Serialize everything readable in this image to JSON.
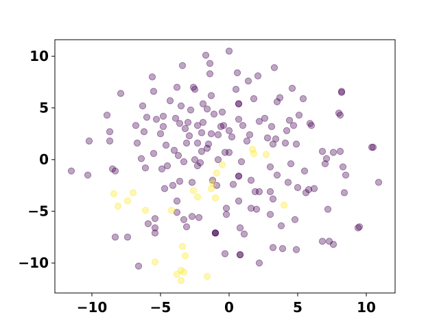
{
  "chart_data": {
    "type": "scatter",
    "title": "",
    "xlabel": "",
    "ylabel": "",
    "xlim": [
      -12.7,
      12.1
    ],
    "ylim": [
      -12.9,
      11.6
    ],
    "xticks": [
      -10,
      -5,
      0,
      5,
      10
    ],
    "yticks": [
      -10,
      -5,
      0,
      5,
      10
    ],
    "grid": false,
    "legend": "none",
    "alpha": 0.35,
    "series": [
      {
        "color": "#440154",
        "points": [
          [
            -11.5,
            -1.1
          ],
          [
            -10.2,
            1.8
          ],
          [
            -10.3,
            -1.5
          ],
          [
            -8.9,
            4.3
          ],
          [
            -8.7,
            2.7
          ],
          [
            -8.7,
            1.8
          ],
          [
            -8.5,
            -0.9
          ],
          [
            -8.3,
            -1.1
          ],
          [
            -8.3,
            -7.5
          ],
          [
            -7.9,
            6.4
          ],
          [
            -7.4,
            -7.5
          ],
          [
            -6.8,
            3.3
          ],
          [
            -6.7,
            1.6
          ],
          [
            -6.6,
            -10.3
          ],
          [
            -6.4,
            0.1
          ],
          [
            -6.3,
            5.2
          ],
          [
            -6.2,
            2.7
          ],
          [
            -6.1,
            -0.8
          ],
          [
            -6.0,
            4.1
          ],
          [
            -5.9,
            -6.2
          ],
          [
            -5.6,
            8.0
          ],
          [
            -5.5,
            6.6
          ],
          [
            -5.5,
            0.6
          ],
          [
            -5.4,
            -5.7
          ],
          [
            -5.4,
            -6.6
          ],
          [
            -5.4,
            -7.1
          ],
          [
            -5.3,
            3.9
          ],
          [
            -5.0,
            2.5
          ],
          [
            -4.9,
            -0.9
          ],
          [
            -4.8,
            4.2
          ],
          [
            -4.8,
            3.2
          ],
          [
            -4.7,
            -2.8
          ],
          [
            -4.6,
            1.4
          ],
          [
            -4.5,
            -0.6
          ],
          [
            -4.3,
            5.7
          ],
          [
            -4.1,
            -2.5
          ],
          [
            -4.0,
            0.9
          ],
          [
            -3.9,
            4.0
          ],
          [
            -3.8,
            -4.0
          ],
          [
            -3.8,
            7.0
          ],
          [
            -3.8,
            -5.1
          ],
          [
            -3.7,
            0.4
          ],
          [
            -3.6,
            -2.1
          ],
          [
            -3.6,
            3.5
          ],
          [
            -3.5,
            5.2
          ],
          [
            -3.4,
            9.1
          ],
          [
            -3.3,
            -0.2
          ],
          [
            -3.3,
            -5.8
          ],
          [
            -3.2,
            3.0
          ],
          [
            -3.1,
            1.6
          ],
          [
            -3.1,
            -6.5
          ],
          [
            -3.0,
            3.6
          ],
          [
            -2.9,
            2.3
          ],
          [
            -2.8,
            4.8
          ],
          [
            -2.7,
            -2.2
          ],
          [
            -2.7,
            -5.5
          ],
          [
            -2.6,
            7.0
          ],
          [
            -2.5,
            6.8
          ],
          [
            -2.5,
            0.0
          ],
          [
            -2.3,
            3.3
          ],
          [
            -2.3,
            -0.6
          ],
          [
            -2.3,
            1.6
          ],
          [
            -2.2,
            -5.6
          ],
          [
            -2.1,
            -0.3
          ],
          [
            -2.0,
            2.6
          ],
          [
            -2.0,
            0.8
          ],
          [
            -1.9,
            3.6
          ],
          [
            -1.9,
            5.4
          ],
          [
            -1.7,
            10.1
          ],
          [
            -1.6,
            4.9
          ],
          [
            -1.6,
            1.1
          ],
          [
            -1.5,
            1.5
          ],
          [
            -1.4,
            8.3
          ],
          [
            -1.4,
            9.3
          ],
          [
            -1.3,
            2.5
          ],
          [
            -1.3,
            6.2
          ],
          [
            -1.2,
            -2.0
          ],
          [
            -1.1,
            4.4
          ],
          [
            -1.0,
            -7.1
          ],
          [
            -1.0,
            -7.1
          ],
          [
            -1.0,
            -7.1
          ],
          [
            -0.9,
            -2.5
          ],
          [
            -0.8,
            0.0
          ],
          [
            -0.8,
            2.4
          ],
          [
            -0.6,
            3.2
          ],
          [
            -0.5,
            4.6
          ],
          [
            -0.4,
            3.3
          ],
          [
            -0.3,
            0.7
          ],
          [
            -0.3,
            -9.1
          ],
          [
            -0.2,
            -4.7
          ],
          [
            -0.2,
            -5.3
          ],
          [
            0.0,
            10.5
          ],
          [
            0.0,
            2.8
          ],
          [
            0.0,
            0.7
          ],
          [
            0.2,
            2.2
          ],
          [
            0.3,
            -2.4
          ],
          [
            0.5,
            6.8
          ],
          [
            0.6,
            8.4
          ],
          [
            0.7,
            5.4
          ],
          [
            0.7,
            5.4
          ],
          [
            0.7,
            3.9
          ],
          [
            0.7,
            -1.6
          ],
          [
            0.7,
            -1.6
          ],
          [
            0.7,
            -4.0
          ],
          [
            0.8,
            -6.6
          ],
          [
            0.8,
            -9.2
          ],
          [
            0.8,
            -9.2
          ],
          [
            0.9,
            -0.2
          ],
          [
            1.0,
            3.3
          ],
          [
            1.1,
            -7.2
          ],
          [
            1.3,
            1.8
          ],
          [
            1.4,
            7.6
          ],
          [
            1.5,
            2.4
          ],
          [
            1.6,
            -2.0
          ],
          [
            1.6,
            -4.7
          ],
          [
            1.8,
            5.9
          ],
          [
            1.9,
            -3.1
          ],
          [
            2.0,
            -4.8
          ],
          [
            2.1,
            8.1
          ],
          [
            2.2,
            -3.1
          ],
          [
            2.2,
            3.7
          ],
          [
            2.2,
            -10.0
          ],
          [
            2.6,
            4.0
          ],
          [
            2.8,
            2.1
          ],
          [
            3.0,
            -0.7
          ],
          [
            3.0,
            -5.3
          ],
          [
            3.0,
            -3.1
          ],
          [
            3.1,
            3.2
          ],
          [
            3.2,
            1.5
          ],
          [
            3.2,
            -3.8
          ],
          [
            3.2,
            -8.5
          ],
          [
            3.3,
            8.9
          ],
          [
            3.4,
            2.0
          ],
          [
            3.5,
            -1.5
          ],
          [
            3.5,
            5.6
          ],
          [
            3.7,
            6.0
          ],
          [
            3.8,
            -6.4
          ],
          [
            3.9,
            -8.6
          ],
          [
            4.1,
            1.6
          ],
          [
            4.2,
            2.8
          ],
          [
            4.3,
            -2.2
          ],
          [
            4.4,
            3.8
          ],
          [
            4.5,
            -0.4
          ],
          [
            4.6,
            6.9
          ],
          [
            4.7,
            3.3
          ],
          [
            4.8,
            -5.8
          ],
          [
            4.9,
            1.5
          ],
          [
            4.9,
            -8.7
          ],
          [
            5.0,
            -2.7
          ],
          [
            5.1,
            4.3
          ],
          [
            5.4,
            5.9
          ],
          [
            5.5,
            -1.1
          ],
          [
            5.6,
            -3.2
          ],
          [
            5.8,
            -2.9
          ],
          [
            5.9,
            3.5
          ],
          [
            6.0,
            3.3
          ],
          [
            6.2,
            -2.8
          ],
          [
            6.8,
            0.8
          ],
          [
            6.8,
            -7.9
          ],
          [
            7.0,
            -0.4
          ],
          [
            7.1,
            0.1
          ],
          [
            7.2,
            -4.8
          ],
          [
            7.3,
            -7.9
          ],
          [
            7.6,
            0.7
          ],
          [
            7.6,
            -8.2
          ],
          [
            8.0,
            4.5
          ],
          [
            8.1,
            4.3
          ],
          [
            8.1,
            0.8
          ],
          [
            8.2,
            6.5
          ],
          [
            8.2,
            6.6
          ],
          [
            8.3,
            -0.7
          ],
          [
            8.4,
            -3.2
          ],
          [
            8.5,
            -1.5
          ],
          [
            9.4,
            -6.6
          ],
          [
            9.5,
            -6.5
          ],
          [
            10.4,
            1.2
          ],
          [
            10.5,
            1.2
          ],
          [
            10.9,
            -2.2
          ]
        ]
      },
      {
        "color": "#fde725",
        "points": [
          [
            -8.4,
            -3.3
          ],
          [
            -8.1,
            -4.5
          ],
          [
            -7.4,
            -4.0
          ],
          [
            -7.0,
            -3.2
          ],
          [
            -6.1,
            -4.9
          ],
          [
            -5.4,
            -9.9
          ],
          [
            -4.2,
            -4.9
          ],
          [
            -3.8,
            -11.1
          ],
          [
            -3.5,
            -10.7
          ],
          [
            -3.5,
            -11.7
          ],
          [
            -3.4,
            -8.4
          ],
          [
            -3.3,
            -10.9
          ],
          [
            -3.2,
            -9.3
          ],
          [
            -2.6,
            -3.0
          ],
          [
            -2.3,
            -3.6
          ],
          [
            -1.6,
            -11.3
          ],
          [
            -1.3,
            -2.8
          ],
          [
            -1.2,
            -2.3
          ],
          [
            -1.0,
            -3.7
          ],
          [
            -0.9,
            -1.3
          ],
          [
            -0.5,
            -0.5
          ],
          [
            1.7,
            1.0
          ],
          [
            1.8,
            0.6
          ],
          [
            2.7,
            0.5
          ],
          [
            4.0,
            -4.4
          ]
        ]
      }
    ]
  }
}
